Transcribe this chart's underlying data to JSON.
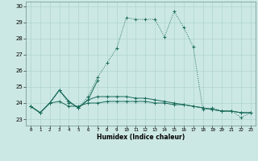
{
  "xlabel": "Humidex (Indice chaleur)",
  "x_values": [
    0,
    1,
    2,
    3,
    4,
    5,
    6,
    7,
    8,
    9,
    10,
    11,
    12,
    13,
    14,
    15,
    16,
    17,
    18,
    19,
    20,
    21,
    22,
    23
  ],
  "series": [
    [
      23.8,
      23.4,
      24.0,
      24.8,
      24.0,
      23.7,
      24.4,
      25.6,
      26.5,
      27.4,
      29.3,
      29.2,
      29.2,
      29.2,
      28.1,
      29.7,
      28.7,
      27.5,
      23.6,
      23.7,
      23.5,
      23.5,
      23.1,
      23.4
    ],
    [
      23.8,
      23.4,
      24.0,
      24.8,
      24.1,
      23.7,
      24.2,
      25.4,
      null,
      null,
      null,
      null,
      null,
      null,
      null,
      null,
      null,
      null,
      null,
      null,
      null,
      null,
      null,
      null
    ],
    [
      23.8,
      23.4,
      24.0,
      24.1,
      23.8,
      23.8,
      24.0,
      24.0,
      24.1,
      24.1,
      24.1,
      24.1,
      24.1,
      24.0,
      24.0,
      23.9,
      23.9,
      23.8,
      23.7,
      23.6,
      23.5,
      23.5,
      23.4,
      23.4
    ],
    [
      23.8,
      23.4,
      24.0,
      24.8,
      24.1,
      23.7,
      24.2,
      24.4,
      24.4,
      24.4,
      24.4,
      24.3,
      24.3,
      24.2,
      24.1,
      24.0,
      23.9,
      23.8,
      23.7,
      23.6,
      23.5,
      23.5,
      23.4,
      23.4
    ]
  ],
  "line_color": "#1a6b5a",
  "bg_color": "#cce8e4",
  "grid_color": "#aed4cf",
  "ylim": [
    22.6,
    30.3
  ],
  "yticks": [
    23,
    24,
    25,
    26,
    27,
    28,
    29,
    30
  ],
  "figsize": [
    3.2,
    2.0
  ],
  "dpi": 100
}
